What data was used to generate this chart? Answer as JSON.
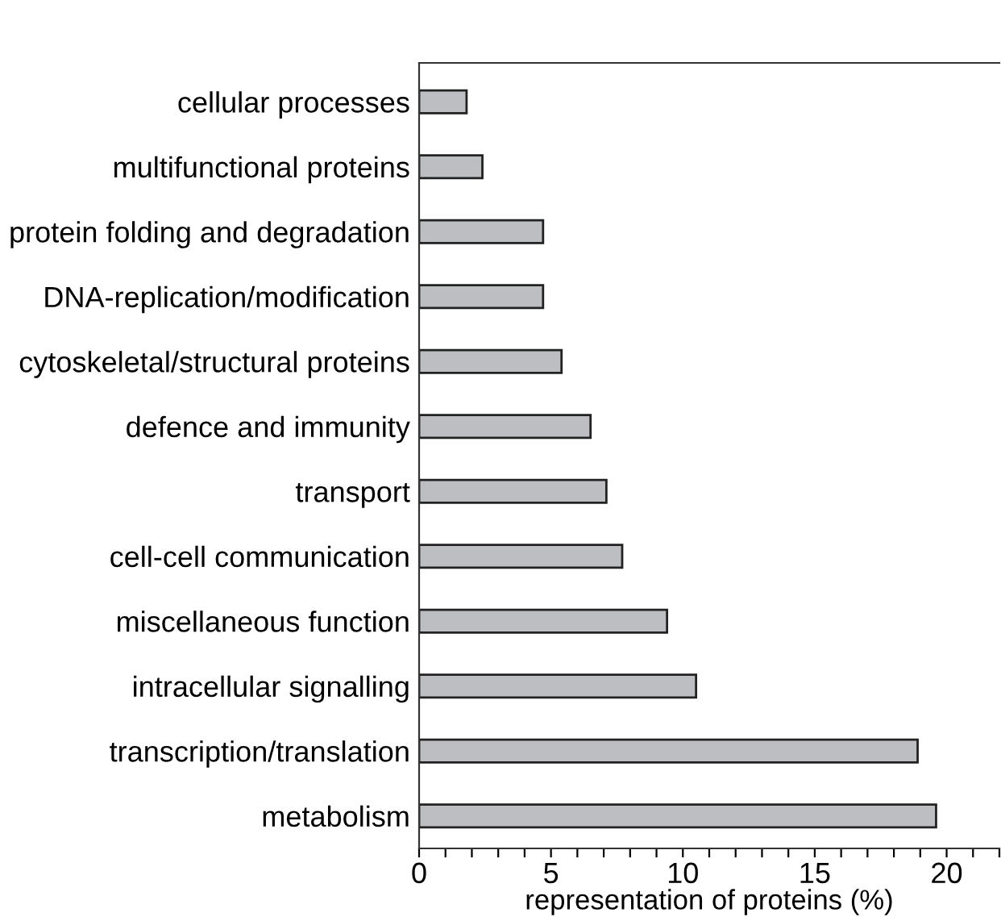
{
  "chart_data": {
    "type": "bar",
    "orientation": "horizontal",
    "xlabel": "representation of proteins (%)",
    "categories": [
      "cellular processes",
      "multifunctional proteins",
      "protein folding and degradation",
      "DNA-replication/modification",
      "cytoskeletal/structural proteins",
      "defence and immunity",
      "transport",
      "cell-cell communication",
      "miscellaneous function",
      "intracellular signalling",
      "transcription/translation",
      "metabolism"
    ],
    "values": [
      1.8,
      2.4,
      4.7,
      4.7,
      5.4,
      6.5,
      7.1,
      7.7,
      9.4,
      10.5,
      18.9,
      19.6
    ],
    "color": "#bdbec2",
    "xlim": [
      0,
      22
    ],
    "xticks": [
      0,
      {
        "value": 1,
        "label": null
      },
      {
        "value": 2,
        "label": null
      },
      {
        "value": 3,
        "label": null
      },
      {
        "value": 4,
        "label": null
      },
      5,
      {
        "value": 6,
        "label": null
      },
      {
        "value": 7,
        "label": null
      },
      {
        "value": 8,
        "label": null
      },
      {
        "value": 9,
        "label": null
      },
      10,
      {
        "value": 11,
        "label": null
      },
      {
        "value": 12,
        "label": null
      },
      {
        "value": 13,
        "label": null
      },
      {
        "value": 14,
        "label": null
      },
      15,
      {
        "value": 16,
        "label": null
      },
      {
        "value": 17,
        "label": null
      },
      {
        "value": 18,
        "label": null
      },
      {
        "value": 19,
        "label": null
      },
      20,
      {
        "value": 21,
        "label": null
      },
      {
        "value": 22,
        "label": null
      }
    ],
    "grid": false,
    "legend": false
  }
}
